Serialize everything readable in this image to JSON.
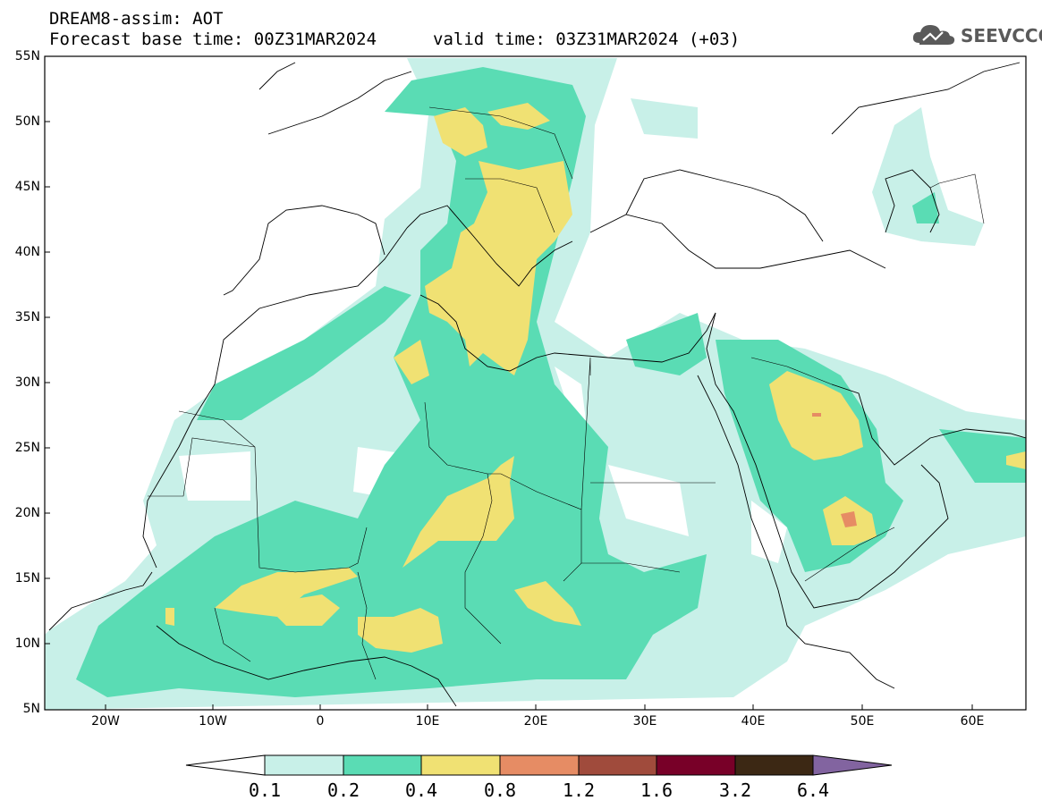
{
  "header": {
    "model_title": "DREAM8-assim: AOT",
    "base_time": "Forecast base time: 00Z31MAR2024",
    "valid_time": "valid time: 03Z31MAR2024 (+03)"
  },
  "logo": {
    "text": "SEEVCCC",
    "icon": "cloud-icon"
  },
  "map": {
    "lat_labels": [
      "55N",
      "50N",
      "45N",
      "40N",
      "35N",
      "30N",
      "25N",
      "20N",
      "15N",
      "10N",
      "5N"
    ],
    "lon_labels": [
      "20W",
      "10W",
      "0",
      "10E",
      "20E",
      "30E",
      "40E",
      "50E",
      "60E"
    ],
    "lon_range": [
      -25,
      65
    ],
    "lat_range": [
      5,
      55
    ]
  },
  "colorbar": {
    "labels": [
      "0.1",
      "0.2",
      "0.4",
      "0.8",
      "1.2",
      "1.6",
      "3.2",
      "6.4"
    ],
    "colors": [
      "#ffffff",
      "#c8f0e8",
      "#5adcb4",
      "#f0e173",
      "#e68c64",
      "#a04b3c",
      "#780028",
      "#3c2814",
      "#8264a0"
    ]
  }
}
